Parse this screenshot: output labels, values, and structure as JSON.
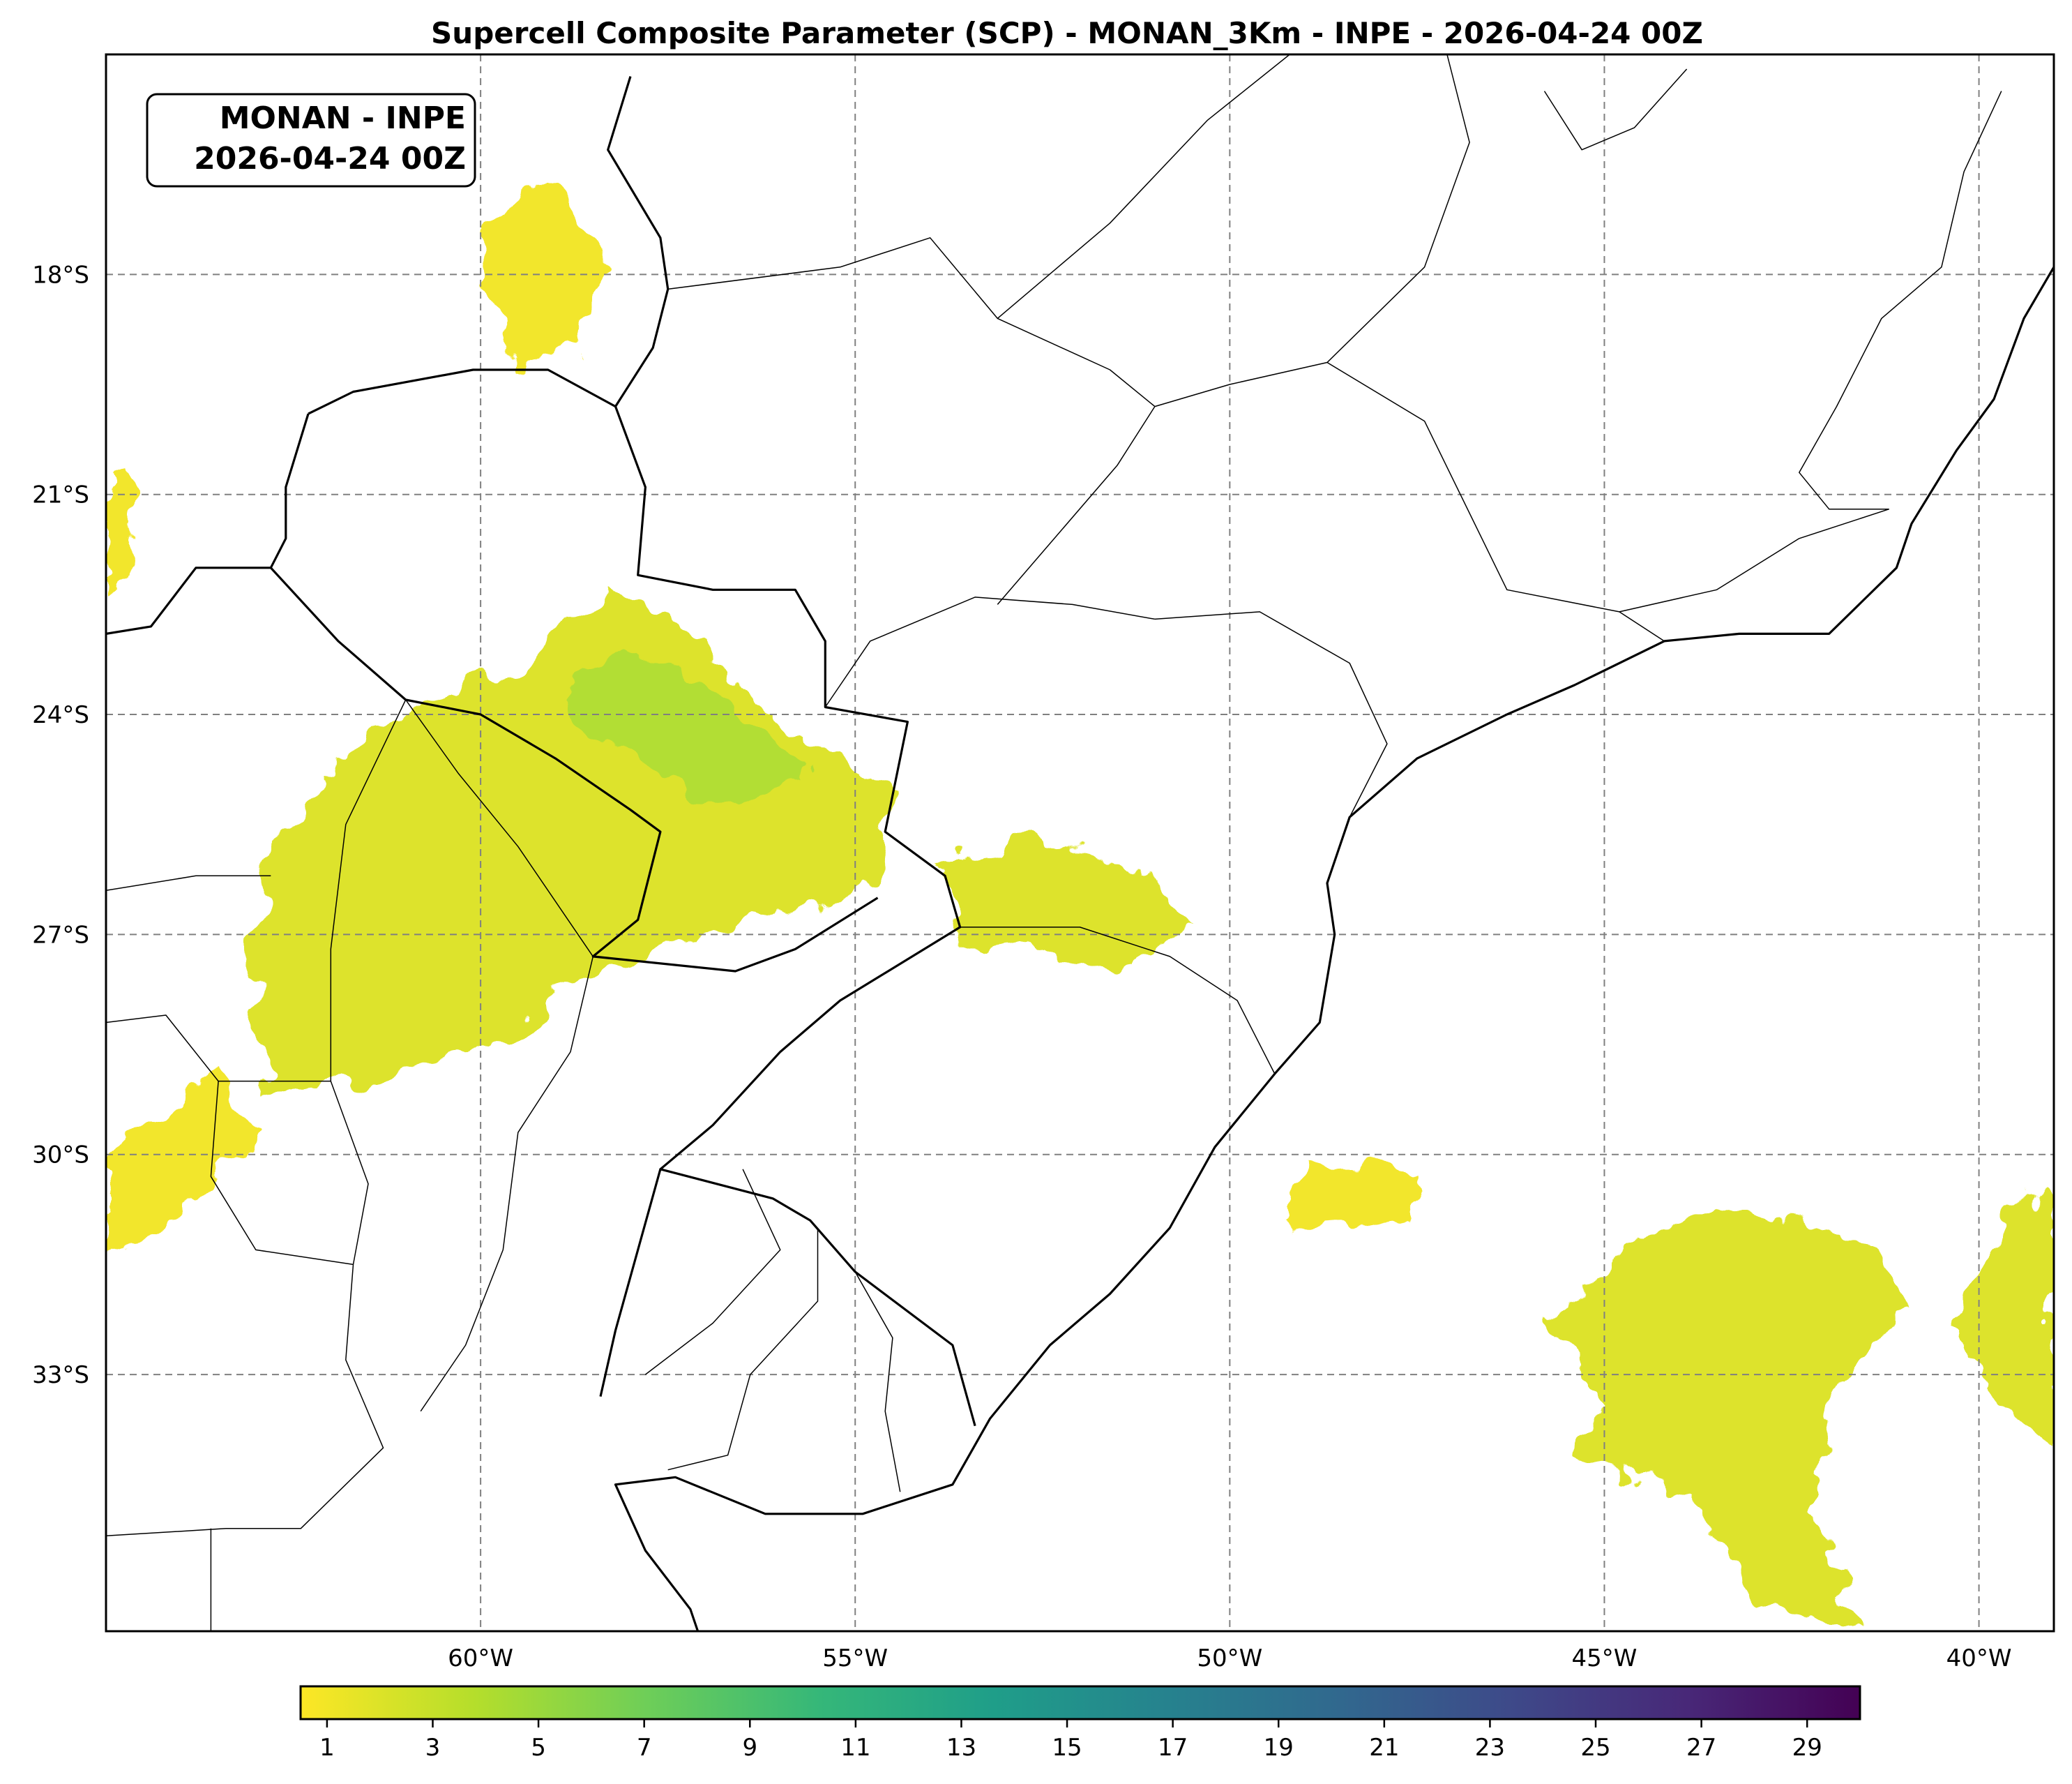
{
  "title": "Supercell Composite Parameter (SCP) - MONAN_3Km - INPE - 2026-04-24 00Z",
  "info_box": {
    "line1": "MONAN - INPE",
    "line2": "2026-04-24 00Z"
  },
  "map": {
    "lon_range": [
      -65,
      -39
    ],
    "lat_range": [
      -36.5,
      -15
    ],
    "lat_ticks": [
      {
        "value": -18,
        "label": "18°S"
      },
      {
        "value": -21,
        "label": "21°S"
      },
      {
        "value": -24,
        "label": "24°S"
      },
      {
        "value": -27,
        "label": "27°S"
      },
      {
        "value": -30,
        "label": "30°S"
      },
      {
        "value": -33,
        "label": "33°S"
      }
    ],
    "lon_ticks": [
      {
        "value": -60,
        "label": "60°W"
      },
      {
        "value": -55,
        "label": "55°W"
      },
      {
        "value": -50,
        "label": "50°W"
      },
      {
        "value": -45,
        "label": "45°W"
      },
      {
        "value": -40,
        "label": "40°W"
      }
    ],
    "gridlines": true
  },
  "colorbar": {
    "colormap": "viridis_r",
    "range": [
      0.5,
      30
    ],
    "ticks": [
      "1",
      "3",
      "5",
      "7",
      "9",
      "11",
      "13",
      "15",
      "17",
      "19",
      "21",
      "23",
      "25",
      "27",
      "29"
    ],
    "stops": [
      "#fde725",
      "#b5de2b",
      "#6ece58",
      "#35b779",
      "#1f9e89",
      "#26828e",
      "#31688e",
      "#3e4989",
      "#482878",
      "#440154"
    ]
  },
  "scp_field": {
    "variable": "SCP",
    "regions": [
      {
        "name": "chaco-paraguay",
        "value": 2,
        "lonlat": [
          [
            -62.8,
            -25.8
          ],
          [
            -61.5,
            -24.2
          ],
          [
            -59.5,
            -23.3
          ],
          [
            -58.3,
            -22.3
          ],
          [
            -57.2,
            -22.8
          ],
          [
            -56.3,
            -23.8
          ],
          [
            -55.3,
            -24.6
          ],
          [
            -54.5,
            -25.0
          ],
          [
            -54.7,
            -26.3
          ],
          [
            -56.0,
            -26.8
          ],
          [
            -57.5,
            -27.1
          ],
          [
            -58.6,
            -27.6
          ],
          [
            -59.6,
            -28.4
          ],
          [
            -61.0,
            -28.9
          ],
          [
            -62.8,
            -29.2
          ],
          [
            -63.1,
            -28.0
          ],
          [
            -62.9,
            -26.8
          ]
        ]
      },
      {
        "name": "paraguay-core",
        "value": 4,
        "lonlat": [
          [
            -59.0,
            -23.9
          ],
          [
            -58.2,
            -23.1
          ],
          [
            -57.1,
            -23.6
          ],
          [
            -56.2,
            -24.3
          ],
          [
            -55.6,
            -24.8
          ],
          [
            -56.6,
            -25.3
          ],
          [
            -58.0,
            -24.6
          ]
        ]
      },
      {
        "name": "pantanal-streaks",
        "value": 1,
        "lonlat": [
          [
            -60.0,
            -17.5
          ],
          [
            -59.0,
            -16.6
          ],
          [
            -58.3,
            -17.9
          ],
          [
            -58.7,
            -19.0
          ],
          [
            -59.6,
            -19.3
          ]
        ]
      },
      {
        "name": "bolivia-west",
        "value": 1,
        "lonlat": [
          [
            -65.0,
            -20.8
          ],
          [
            -64.6,
            -20.7
          ],
          [
            -64.5,
            -22.0
          ],
          [
            -65.0,
            -22.3
          ]
        ]
      },
      {
        "name": "parana-sc",
        "value": 2,
        "lonlat": [
          [
            -53.8,
            -26.0
          ],
          [
            -52.6,
            -25.7
          ],
          [
            -51.2,
            -26.1
          ],
          [
            -50.5,
            -26.9
          ],
          [
            -51.2,
            -27.5
          ],
          [
            -52.2,
            -27.3
          ],
          [
            -53.7,
            -27.0
          ]
        ]
      },
      {
        "name": "rs-coast-band",
        "value": 1,
        "lonlat": [
          [
            -49.0,
            -30.1
          ],
          [
            -47.4,
            -30.2
          ],
          [
            -47.6,
            -30.9
          ],
          [
            -49.3,
            -30.9
          ]
        ]
      },
      {
        "name": "argentina-southwest",
        "value": 1,
        "lonlat": [
          [
            -65.0,
            -30.1
          ],
          [
            -63.6,
            -28.8
          ],
          [
            -63.0,
            -29.6
          ],
          [
            -64.0,
            -30.8
          ],
          [
            -65.0,
            -31.4
          ]
        ]
      },
      {
        "name": "south-atlantic",
        "value": 2,
        "lonlat": [
          [
            -44.6,
            -31.2
          ],
          [
            -43.4,
            -30.8
          ],
          [
            -41.8,
            -31.0
          ],
          [
            -41.0,
            -32.0
          ],
          [
            -41.8,
            -33.2
          ],
          [
            -42.3,
            -34.7
          ],
          [
            -41.6,
            -36.4
          ],
          [
            -43.0,
            -36.1
          ],
          [
            -43.8,
            -34.7
          ],
          [
            -45.4,
            -34.0
          ],
          [
            -44.9,
            -33.4
          ],
          [
            -45.8,
            -32.3
          ]
        ]
      },
      {
        "name": "east-atlantic",
        "value": 2,
        "lonlat": [
          [
            -39.6,
            -30.7
          ],
          [
            -39.0,
            -30.6
          ],
          [
            -39.0,
            -33.9
          ],
          [
            -39.6,
            -33.4
          ],
          [
            -40.4,
            -32.4
          ]
        ]
      }
    ]
  },
  "boundaries": {
    "coastline": [
      [
        -39.0,
        -17.9
      ],
      [
        -39.4,
        -18.6
      ],
      [
        -39.8,
        -19.7
      ],
      [
        -40.3,
        -20.4
      ],
      [
        -40.9,
        -21.4
      ],
      [
        -41.1,
        -22.0
      ],
      [
        -42.0,
        -22.9
      ],
      [
        -43.2,
        -22.9
      ],
      [
        -44.2,
        -23.0
      ],
      [
        -45.4,
        -23.6
      ],
      [
        -46.3,
        -24.0
      ],
      [
        -47.5,
        -24.6
      ],
      [
        -48.4,
        -25.4
      ],
      [
        -48.7,
        -26.3
      ],
      [
        -48.6,
        -27.0
      ],
      [
        -48.8,
        -28.2
      ],
      [
        -49.4,
        -28.9
      ],
      [
        -50.2,
        -29.9
      ],
      [
        -50.8,
        -31.0
      ],
      [
        -51.6,
        -31.9
      ],
      [
        -52.4,
        -32.6
      ],
      [
        -53.2,
        -33.6
      ],
      [
        -53.7,
        -34.5
      ],
      [
        -54.9,
        -34.9
      ],
      [
        -56.2,
        -34.9
      ],
      [
        -57.4,
        -34.4
      ],
      [
        -58.2,
        -34.5
      ],
      [
        -57.8,
        -35.4
      ],
      [
        -57.2,
        -36.2
      ],
      [
        -57.1,
        -36.5
      ]
    ],
    "international": [
      [
        [
          -58.0,
          -15.3
        ],
        [
          -58.3,
          -16.3
        ],
        [
          -57.6,
          -17.5
        ],
        [
          -57.5,
          -18.2
        ],
        [
          -57.7,
          -19.0
        ],
        [
          -58.2,
          -19.8
        ],
        [
          -57.8,
          -20.9
        ],
        [
          -57.9,
          -22.1
        ],
        [
          -56.9,
          -22.3
        ],
        [
          -55.8,
          -22.3
        ],
        [
          -55.4,
          -23.0
        ],
        [
          -55.4,
          -23.9
        ],
        [
          -54.3,
          -24.1
        ],
        [
          -54.6,
          -25.6
        ],
        [
          -53.8,
          -26.2
        ],
        [
          -53.6,
          -26.9
        ],
        [
          -55.2,
          -27.9
        ],
        [
          -56.0,
          -28.6
        ],
        [
          -56.9,
          -29.6
        ],
        [
          -57.6,
          -30.2
        ]
      ],
      [
        [
          -53.4,
          -33.7
        ],
        [
          -53.7,
          -32.6
        ],
        [
          -55.0,
          -31.6
        ],
        [
          -55.6,
          -30.9
        ],
        [
          -56.1,
          -30.6
        ],
        [
          -57.6,
          -30.2
        ],
        [
          -57.9,
          -31.3
        ],
        [
          -58.2,
          -32.4
        ],
        [
          -58.4,
          -33.3
        ]
      ],
      [
        [
          -62.3,
          -19.9
        ],
        [
          -61.7,
          -19.6
        ],
        [
          -60.1,
          -19.3
        ],
        [
          -59.1,
          -19.3
        ],
        [
          -58.2,
          -19.8
        ]
      ],
      [
        [
          -62.3,
          -19.9
        ],
        [
          -62.6,
          -20.9
        ],
        [
          -62.6,
          -21.6
        ],
        [
          -62.8,
          -22.0
        ],
        [
          -61.9,
          -23.0
        ],
        [
          -61.0,
          -23.8
        ],
        [
          -60.0,
          -24.0
        ],
        [
          -59.0,
          -24.6
        ],
        [
          -58.0,
          -25.3
        ],
        [
          -57.6,
          -25.6
        ],
        [
          -57.9,
          -26.8
        ],
        [
          -58.5,
          -27.3
        ],
        [
          -56.6,
          -27.5
        ],
        [
          -55.8,
          -27.2
        ],
        [
          -54.7,
          -26.5
        ]
      ],
      [
        [
          -62.8,
          -22.0
        ],
        [
          -63.8,
          -22.0
        ],
        [
          -64.4,
          -22.8
        ],
        [
          -65.0,
          -22.9
        ]
      ]
    ],
    "states": [
      [
        [
          -55.4,
          -23.9
        ],
        [
          -54.8,
          -23.0
        ],
        [
          -53.4,
          -22.4
        ],
        [
          -52.1,
          -22.5
        ],
        [
          -51.0,
          -22.7
        ]
      ],
      [
        [
          -51.0,
          -22.7
        ],
        [
          -49.6,
          -22.6
        ],
        [
          -48.4,
          -23.3
        ],
        [
          -47.9,
          -24.4
        ],
        [
          -48.4,
          -25.4
        ]
      ],
      [
        [
          -53.6,
          -26.9
        ],
        [
          -52.0,
          -26.9
        ],
        [
          -50.8,
          -27.3
        ],
        [
          -49.9,
          -27.9
        ],
        [
          -49.4,
          -28.9
        ]
      ],
      [
        [
          -53.1,
          -22.5
        ],
        [
          -51.5,
          -20.6
        ],
        [
          -51.0,
          -19.8
        ],
        [
          -50.0,
          -19.5
        ],
        [
          -48.7,
          -19.2
        ],
        [
          -47.4,
          -20.0
        ],
        [
          -46.3,
          -22.3
        ],
        [
          -44.8,
          -22.6
        ],
        [
          -44.2,
          -23.0
        ]
      ],
      [
        [
          -57.5,
          -18.2
        ],
        [
          -55.2,
          -17.9
        ],
        [
          -54.0,
          -17.5
        ],
        [
          -53.1,
          -18.6
        ],
        [
          -51.6,
          -19.3
        ],
        [
          -51.0,
          -19.8
        ]
      ],
      [
        [
          -53.1,
          -18.6
        ],
        [
          -51.6,
          -17.3
        ],
        [
          -50.3,
          -15.9
        ],
        [
          -49.2,
          -15.0
        ]
      ],
      [
        [
          -48.7,
          -19.2
        ],
        [
          -47.4,
          -17.9
        ],
        [
          -46.8,
          -16.2
        ],
        [
          -47.1,
          -15.0
        ]
      ],
      [
        [
          -41.2,
          -21.2
        ],
        [
          -42.0,
          -21.2
        ],
        [
          -42.4,
          -20.7
        ],
        [
          -41.9,
          -19.8
        ],
        [
          -41.3,
          -18.6
        ],
        [
          -40.5,
          -17.9
        ],
        [
          -40.2,
          -16.6
        ],
        [
          -39.7,
          -15.5
        ]
      ],
      [
        [
          -44.8,
          -22.6
        ],
        [
          -43.5,
          -22.3
        ],
        [
          -42.4,
          -21.6
        ],
        [
          -41.2,
          -21.2
        ]
      ],
      [
        [
          -45.8,
          -15.5
        ],
        [
          -45.3,
          -16.3
        ],
        [
          -44.6,
          -16.0
        ],
        [
          -43.9,
          -15.2
        ]
      ],
      [
        [
          -61.0,
          -23.8
        ],
        [
          -60.3,
          -24.8
        ],
        [
          -59.5,
          -25.8
        ],
        [
          -58.5,
          -27.3
        ]
      ],
      [
        [
          -61.0,
          -23.8
        ],
        [
          -61.8,
          -25.5
        ],
        [
          -62.0,
          -27.2
        ],
        [
          -62.0,
          -29.0
        ],
        [
          -61.5,
          -30.4
        ],
        [
          -61.7,
          -31.5
        ]
      ],
      [
        [
          -58.5,
          -27.3
        ],
        [
          -58.8,
          -28.6
        ],
        [
          -59.5,
          -29.7
        ],
        [
          -59.7,
          -31.3
        ],
        [
          -60.2,
          -32.6
        ],
        [
          -60.8,
          -33.5
        ]
      ],
      [
        [
          -62.0,
          -29.0
        ],
        [
          -63.5,
          -29.0
        ],
        [
          -64.2,
          -28.1
        ],
        [
          -65.0,
          -28.2
        ]
      ],
      [
        [
          -62.8,
          -26.2
        ],
        [
          -63.8,
          -26.2
        ],
        [
          -65.0,
          -26.4
        ]
      ],
      [
        [
          -63.5,
          -29.0
        ],
        [
          -63.6,
          -30.3
        ],
        [
          -63.0,
          -31.3
        ],
        [
          -61.7,
          -31.5
        ]
      ],
      [
        [
          -61.7,
          -31.5
        ],
        [
          -61.8,
          -32.8
        ],
        [
          -61.3,
          -34.0
        ],
        [
          -62.4,
          -35.1
        ],
        [
          -63.4,
          -35.1
        ],
        [
          -65.0,
          -35.2
        ]
      ],
      [
        [
          -63.6,
          -35.1
        ],
        [
          -63.6,
          -36.5
        ]
      ],
      [
        [
          -56.5,
          -30.2
        ],
        [
          -56.0,
          -31.3
        ],
        [
          -56.9,
          -32.3
        ],
        [
          -57.8,
          -33.0
        ]
      ],
      [
        [
          -55.5,
          -31.0
        ],
        [
          -55.5,
          -32.0
        ],
        [
          -56.4,
          -33.0
        ],
        [
          -56.7,
          -34.1
        ],
        [
          -57.5,
          -34.3
        ]
      ],
      [
        [
          -55.0,
          -31.6
        ],
        [
          -54.5,
          -32.5
        ],
        [
          -54.6,
          -33.5
        ],
        [
          -54.4,
          -34.6
        ]
      ]
    ]
  }
}
